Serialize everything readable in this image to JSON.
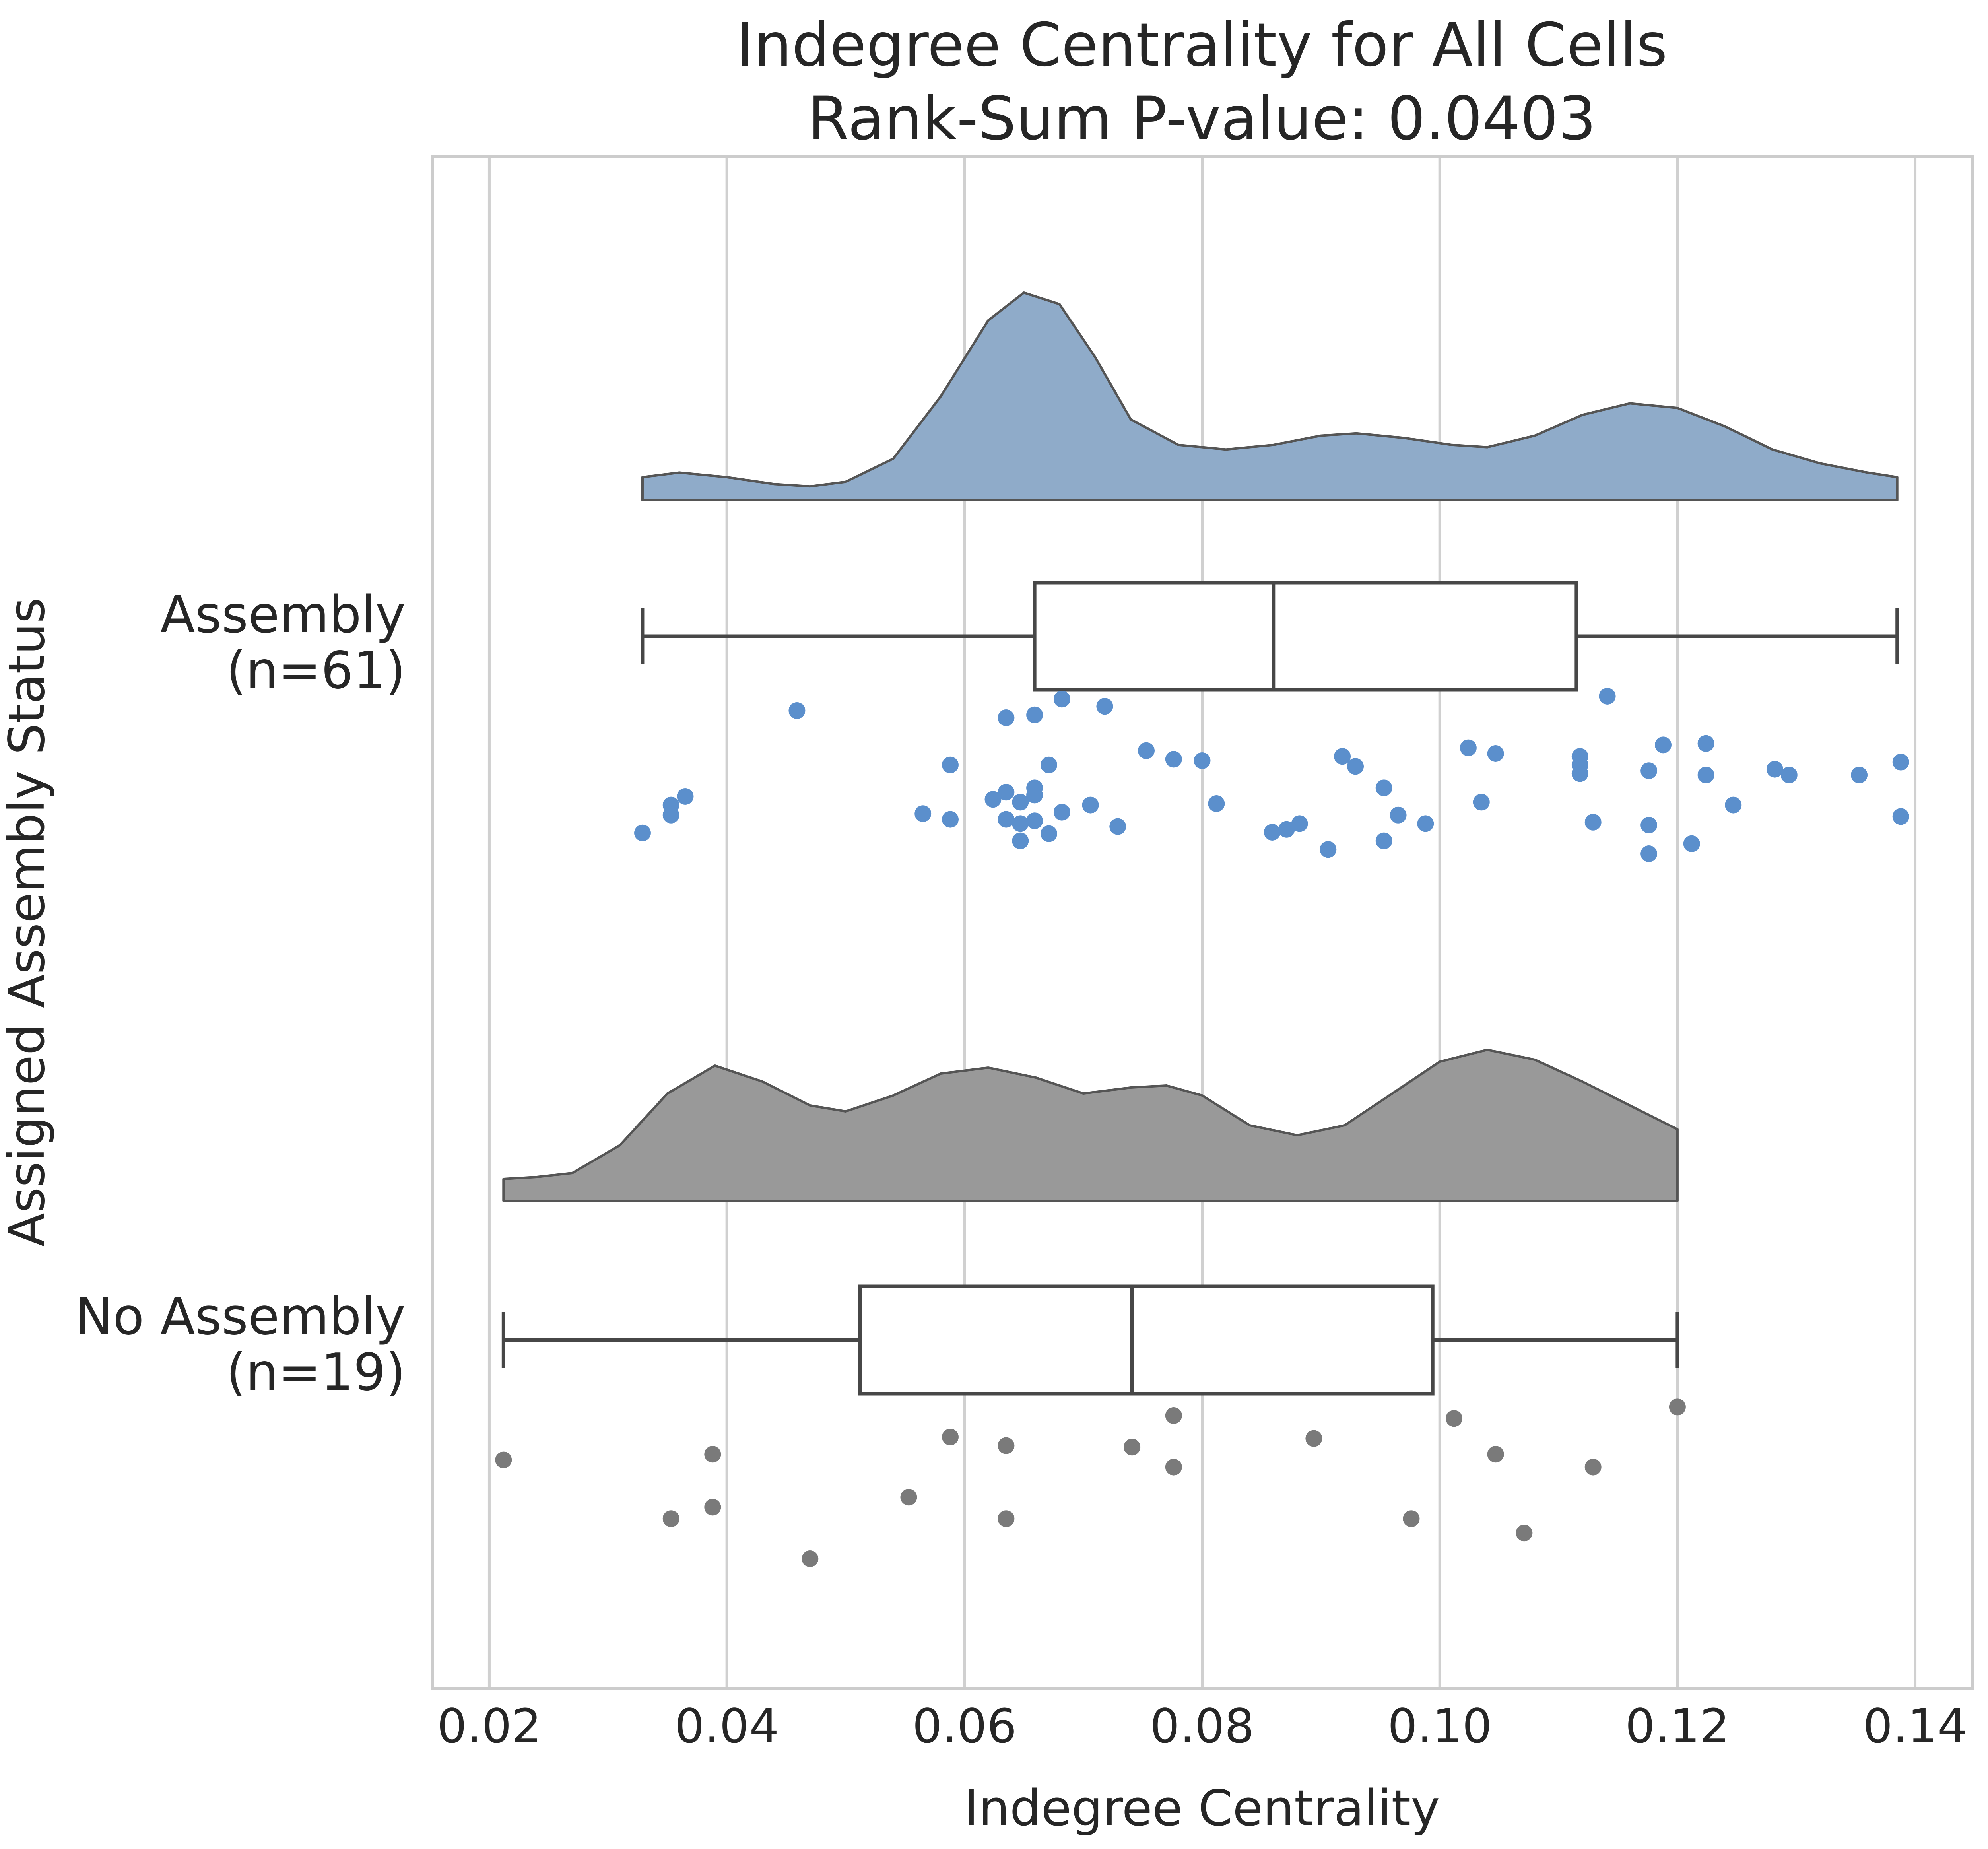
{
  "chart_data": {
    "type": "raincloud",
    "title": "Indegree Centrality for All Cells",
    "subtitle": "Rank-Sum P-value: 0.0403",
    "xlabel": "Indegree Centrality",
    "ylabel": "Assigned Assembly Status",
    "xlim": [
      0.0152,
      0.1448
    ],
    "xticks": [
      0.02,
      0.04,
      0.06,
      0.08,
      0.1,
      0.12,
      0.14
    ],
    "xtick_labels": [
      "0.02",
      "0.04",
      "0.06",
      "0.08",
      "0.10",
      "0.12",
      "0.14"
    ],
    "grid": "vertical",
    "legend": "none",
    "groups": [
      {
        "label_line1": "Assembly",
        "label_line2": "(n=61)",
        "color": "#8fabc9",
        "point_color": "#5b8fcc",
        "box": {
          "whisker_low": 0.0329,
          "q1": 0.0659,
          "median": 0.086,
          "q3": 0.1115,
          "whisker_high": 0.1385
        },
        "density": [
          [
            0.0329,
            0.1
          ],
          [
            0.036,
            0.12
          ],
          [
            0.04,
            0.1
          ],
          [
            0.044,
            0.07
          ],
          [
            0.047,
            0.06
          ],
          [
            0.05,
            0.08
          ],
          [
            0.054,
            0.18
          ],
          [
            0.058,
            0.45
          ],
          [
            0.062,
            0.78
          ],
          [
            0.065,
            0.9
          ],
          [
            0.068,
            0.85
          ],
          [
            0.071,
            0.62
          ],
          [
            0.074,
            0.35
          ],
          [
            0.078,
            0.24
          ],
          [
            0.082,
            0.22
          ],
          [
            0.086,
            0.24
          ],
          [
            0.09,
            0.28
          ],
          [
            0.093,
            0.29
          ],
          [
            0.097,
            0.27
          ],
          [
            0.101,
            0.24
          ],
          [
            0.104,
            0.23
          ],
          [
            0.108,
            0.28
          ],
          [
            0.112,
            0.37
          ],
          [
            0.116,
            0.42
          ],
          [
            0.12,
            0.4
          ],
          [
            0.124,
            0.32
          ],
          [
            0.128,
            0.22
          ],
          [
            0.132,
            0.16
          ],
          [
            0.136,
            0.12
          ],
          [
            0.1385,
            0.1
          ]
        ],
        "points": [
          [
            0.0329,
            1.31
          ],
          [
            0.0353,
            0.92
          ],
          [
            0.0353,
            1.06
          ],
          [
            0.0365,
            0.8
          ],
          [
            0.0459,
            -0.4
          ],
          [
            0.0565,
            1.04
          ],
          [
            0.0588,
            0.36
          ],
          [
            0.0588,
            1.12
          ],
          [
            0.0624,
            0.84
          ],
          [
            0.0635,
            -0.3
          ],
          [
            0.0635,
            0.74
          ],
          [
            0.0635,
            1.12
          ],
          [
            0.0647,
            0.88
          ],
          [
            0.0647,
            1.18
          ],
          [
            0.0647,
            1.42
          ],
          [
            0.0659,
            -0.34
          ],
          [
            0.0659,
            0.68
          ],
          [
            0.0659,
            0.78
          ],
          [
            0.0659,
            1.14
          ],
          [
            0.0671,
            0.36
          ],
          [
            0.0671,
            1.32
          ],
          [
            0.0682,
            -0.56
          ],
          [
            0.0682,
            1.02
          ],
          [
            0.0706,
            0.92
          ],
          [
            0.0718,
            -0.46
          ],
          [
            0.0729,
            1.22
          ],
          [
            0.0753,
            0.16
          ],
          [
            0.0776,
            0.28
          ],
          [
            0.08,
            0.3
          ],
          [
            0.0812,
            0.9
          ],
          [
            0.0859,
            1.3
          ],
          [
            0.0871,
            1.26
          ],
          [
            0.0882,
            1.18
          ],
          [
            0.0906,
            1.54
          ],
          [
            0.0918,
            0.24
          ],
          [
            0.0929,
            0.38
          ],
          [
            0.0953,
            0.68
          ],
          [
            0.0953,
            1.42
          ],
          [
            0.0965,
            1.06
          ],
          [
            0.0988,
            1.18
          ],
          [
            0.1024,
            0.12
          ],
          [
            0.1035,
            0.88
          ],
          [
            0.1047,
            0.2
          ],
          [
            0.1118,
            0.24
          ],
          [
            0.1118,
            0.36
          ],
          [
            0.1118,
            0.48
          ],
          [
            0.1129,
            1.16
          ],
          [
            0.1141,
            -0.6
          ],
          [
            0.1176,
            0.44
          ],
          [
            0.1176,
            1.2
          ],
          [
            0.1176,
            1.6
          ],
          [
            0.1188,
            0.08
          ],
          [
            0.1212,
            1.46
          ],
          [
            0.1224,
            0.06
          ],
          [
            0.1224,
            0.5
          ],
          [
            0.1247,
            0.92
          ],
          [
            0.1282,
            0.42
          ],
          [
            0.1294,
            0.5
          ],
          [
            0.1353,
            0.5
          ],
          [
            0.1388,
            0.32
          ],
          [
            0.1388,
            1.08
          ]
        ]
      },
      {
        "label_line1": "No Assembly",
        "label_line2": "(n=19)",
        "color": "#999999",
        "point_color": "#7a7a7a",
        "box": {
          "whisker_low": 0.0212,
          "q1": 0.0512,
          "median": 0.0741,
          "q3": 0.0994,
          "whisker_high": 0.12
        },
        "density": [
          [
            0.0212,
            0.11
          ],
          [
            0.024,
            0.12
          ],
          [
            0.027,
            0.14
          ],
          [
            0.031,
            0.28
          ],
          [
            0.035,
            0.54
          ],
          [
            0.039,
            0.68
          ],
          [
            0.043,
            0.6
          ],
          [
            0.047,
            0.48
          ],
          [
            0.05,
            0.45
          ],
          [
            0.054,
            0.53
          ],
          [
            0.058,
            0.64
          ],
          [
            0.062,
            0.67
          ],
          [
            0.066,
            0.62
          ],
          [
            0.07,
            0.54
          ],
          [
            0.074,
            0.57
          ],
          [
            0.077,
            0.58
          ],
          [
            0.08,
            0.53
          ],
          [
            0.084,
            0.38
          ],
          [
            0.088,
            0.33
          ],
          [
            0.092,
            0.38
          ],
          [
            0.096,
            0.54
          ],
          [
            0.1,
            0.7
          ],
          [
            0.104,
            0.76
          ],
          [
            0.108,
            0.71
          ],
          [
            0.112,
            0.6
          ],
          [
            0.116,
            0.48
          ],
          [
            0.12,
            0.36
          ]
        ],
        "points": [
          [
            0.0212,
            0.62
          ],
          [
            0.0353,
            1.44
          ],
          [
            0.0388,
            0.54
          ],
          [
            0.0388,
            1.28
          ],
          [
            0.047,
            2.0
          ],
          [
            0.0553,
            1.14
          ],
          [
            0.0588,
            0.3
          ],
          [
            0.0635,
            0.42
          ],
          [
            0.0635,
            1.44
          ],
          [
            0.0741,
            0.44
          ],
          [
            0.0776,
            0.0
          ],
          [
            0.0776,
            0.72
          ],
          [
            0.0894,
            0.32
          ],
          [
            0.0976,
            1.44
          ],
          [
            0.1012,
            0.04
          ],
          [
            0.1047,
            0.54
          ],
          [
            0.1071,
            1.64
          ],
          [
            0.1129,
            0.72
          ],
          [
            0.12,
            -0.12
          ]
        ]
      }
    ]
  }
}
